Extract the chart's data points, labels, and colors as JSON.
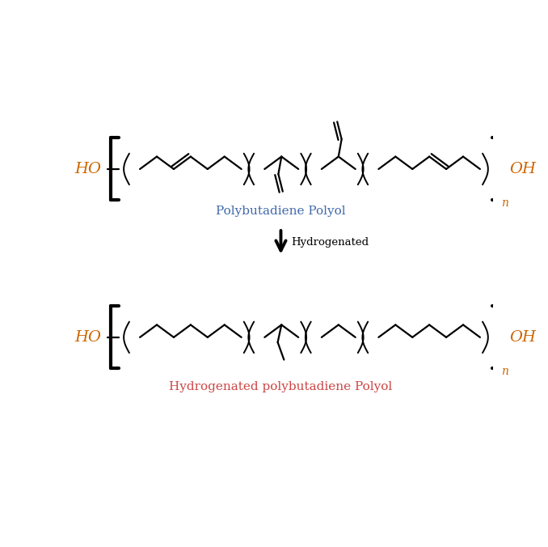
{
  "bg_color": "#ffffff",
  "line_color": "#000000",
  "ho_color": "#CC6600",
  "oh_color": "#CC6600",
  "n_color": "#CC6600",
  "label1": "Polybutadiene Polyol",
  "label1_color": "#4169AA",
  "label2": "Hydrogenated",
  "label2_color": "#000000",
  "label3": "Hydrogenated polybutadiene Polyol",
  "label3_color": "#CC4444",
  "arrow_color": "#000000",
  "lw_chain": 1.6,
  "lw_bracket": 3.0,
  "lw_paren": 1.4,
  "fontsize_ho": 14,
  "fontsize_label": 11,
  "fontsize_n": 10
}
